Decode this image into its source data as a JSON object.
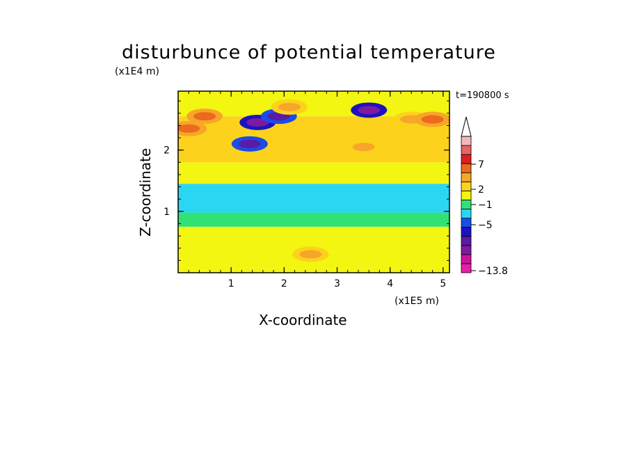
{
  "title": "disturbunce of potential temperature",
  "y_unit": "(x1E4 m)",
  "x_unit": "(x1E5 m)",
  "time_label": "t=190800 s",
  "colors": {
    "bands": [
      "#e81ea8",
      "#c8169c",
      "#7e1aa0",
      "#5a1ba6",
      "#1a14c0",
      "#1a4ce8",
      "#2ad6f2",
      "#30e276",
      "#f3f610",
      "#fcd21c",
      "#f7a62a",
      "#ec6a1c",
      "#de1e1e",
      "#e66464",
      "#f4b8b8"
    ]
  },
  "chart_data": {
    "type": "heatmap",
    "title": "disturbunce of potential temperature",
    "xlabel": "X-coordinate",
    "ylabel": "Z-coordinate",
    "x_unit": "(x1E5 m)",
    "y_unit": "(x1E4 m)",
    "xlim": [
      0,
      5.12
    ],
    "ylim": [
      0,
      2.96
    ],
    "x_ticks": [
      "1",
      "2",
      "3",
      "4",
      "5"
    ],
    "y_ticks": [
      "1",
      "2"
    ],
    "colorbar_labels": [
      "7",
      "2",
      "−1",
      "−5",
      "−13.8"
    ],
    "annotation": "t=190800 s",
    "layers": [
      {
        "z_range": [
          0.0,
          0.35
        ],
        "value": 1
      },
      {
        "z_range": [
          0.35,
          0.75
        ],
        "value": 1
      },
      {
        "z_range": [
          0.75,
          0.98
        ],
        "value": 0
      },
      {
        "z_range": [
          0.98,
          1.45
        ],
        "value": -1
      },
      {
        "z_range": [
          1.45,
          1.8
        ],
        "value": 1
      },
      {
        "z_range": [
          1.8,
          2.55
        ],
        "value": 2
      },
      {
        "z_range": [
          2.55,
          2.96
        ],
        "value": 1
      }
    ],
    "features": [
      {
        "x": 0.2,
        "z": 2.35,
        "value": 4
      },
      {
        "x": 0.5,
        "z": 2.55,
        "value": 4
      },
      {
        "x": 1.5,
        "z": 2.45,
        "value": -5
      },
      {
        "x": 1.35,
        "z": 2.1,
        "value": -4
      },
      {
        "x": 1.9,
        "z": 2.55,
        "value": -4
      },
      {
        "x": 2.1,
        "z": 2.7,
        "value": 3
      },
      {
        "x": 3.6,
        "z": 2.65,
        "value": -5
      },
      {
        "x": 3.5,
        "z": 2.05,
        "value": 3
      },
      {
        "x": 4.4,
        "z": 2.5,
        "value": 3
      },
      {
        "x": 4.8,
        "z": 2.5,
        "value": 4
      },
      {
        "x": 2.5,
        "z": 0.3,
        "value": 3
      }
    ]
  }
}
